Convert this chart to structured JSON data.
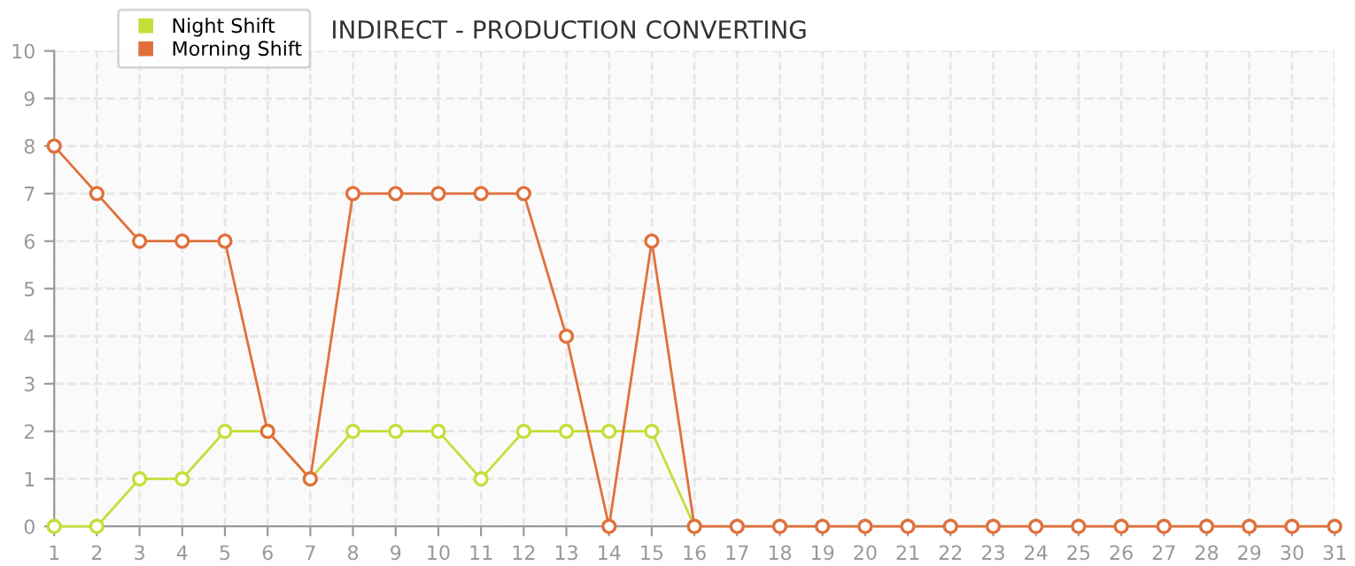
{
  "chart_data": {
    "type": "line",
    "title": "INDIRECT - PRODUCTION CONVERTING",
    "x": [
      1,
      2,
      3,
      4,
      5,
      6,
      7,
      8,
      9,
      10,
      11,
      12,
      13,
      14,
      15,
      16,
      17,
      18,
      19,
      20,
      21,
      22,
      23,
      24,
      25,
      26,
      27,
      28,
      29,
      30,
      31
    ],
    "series": [
      {
        "name": "Night Shift",
        "color": "#c5de3a",
        "values": [
          0,
          0,
          1,
          1,
          2,
          2,
          1,
          2,
          2,
          2,
          1,
          2,
          2,
          2,
          2,
          0,
          null,
          null,
          null,
          null,
          null,
          null,
          null,
          null,
          null,
          null,
          null,
          null,
          null,
          null,
          null
        ]
      },
      {
        "name": "Morning Shift",
        "color": "#e0703a",
        "values": [
          8,
          7,
          6,
          6,
          6,
          2,
          1,
          7,
          7,
          7,
          7,
          7,
          4,
          0,
          6,
          0,
          0,
          0,
          0,
          0,
          0,
          0,
          0,
          0,
          0,
          0,
          0,
          0,
          0,
          0,
          0
        ]
      }
    ],
    "xlim": [
      1,
      31
    ],
    "xticks": [
      1,
      2,
      3,
      4,
      5,
      6,
      7,
      8,
      9,
      10,
      11,
      12,
      13,
      14,
      15,
      16,
      17,
      18,
      19,
      20,
      21,
      22,
      23,
      24,
      25,
      26,
      27,
      28,
      29,
      30,
      31
    ],
    "ylim": [
      0,
      10
    ],
    "yticks": [
      0,
      1,
      2,
      3,
      4,
      5,
      6,
      7,
      8,
      9,
      10
    ],
    "grid": true,
    "legend": "top left",
    "marker": "circle",
    "line_style": "solid"
  }
}
